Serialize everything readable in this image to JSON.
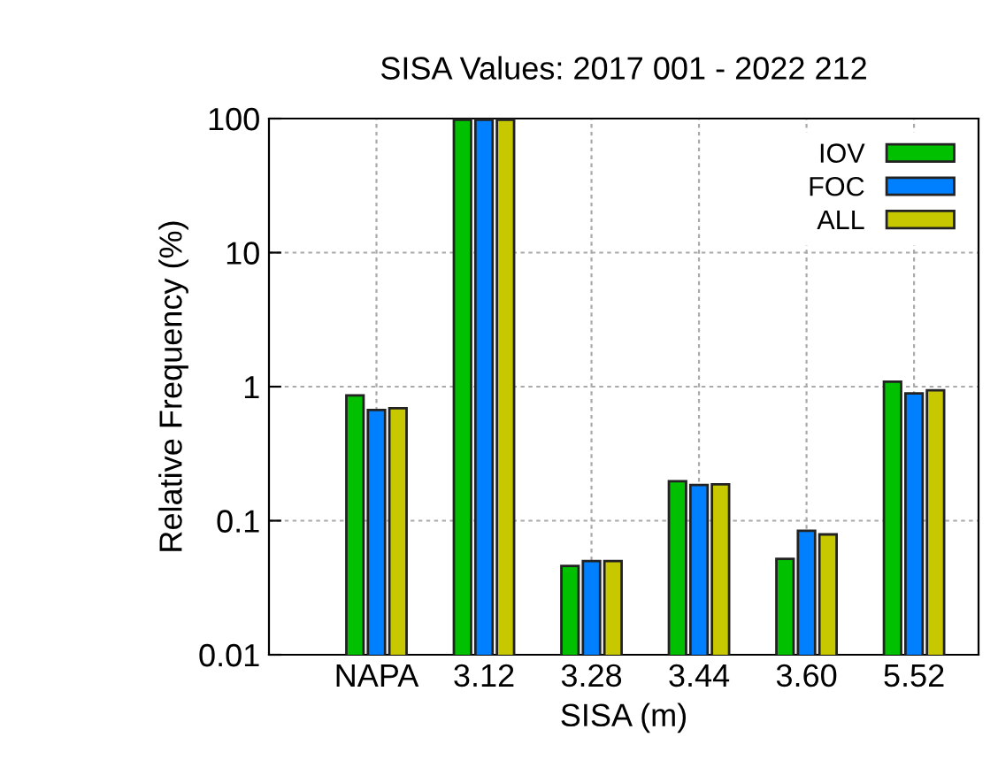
{
  "chart_data": {
    "type": "bar",
    "title": "SISA Values: 2017 001 - 2022 212",
    "xlabel": "SISA (m)",
    "ylabel": "Relative Frequency (%)",
    "categories": [
      "NAPA",
      "3.12",
      "3.28",
      "3.44",
      "3.60",
      "5.52"
    ],
    "series": [
      {
        "name": "IOV",
        "color": "#00c000",
        "values": [
          0.86,
          98,
          0.046,
          0.197,
          0.052,
          1.09
        ]
      },
      {
        "name": "FOC",
        "color": "#0080ff",
        "values": [
          0.67,
          98,
          0.05,
          0.185,
          0.084,
          0.89
        ]
      },
      {
        "name": "ALL",
        "color": "#c8c800",
        "values": [
          0.69,
          98,
          0.05,
          0.187,
          0.079,
          0.94
        ]
      }
    ],
    "log": "y",
    "ylim": [
      0.01,
      100
    ],
    "yticks": [
      0.01,
      0.1,
      1,
      10,
      100
    ],
    "grid": true,
    "legend": "top right"
  }
}
